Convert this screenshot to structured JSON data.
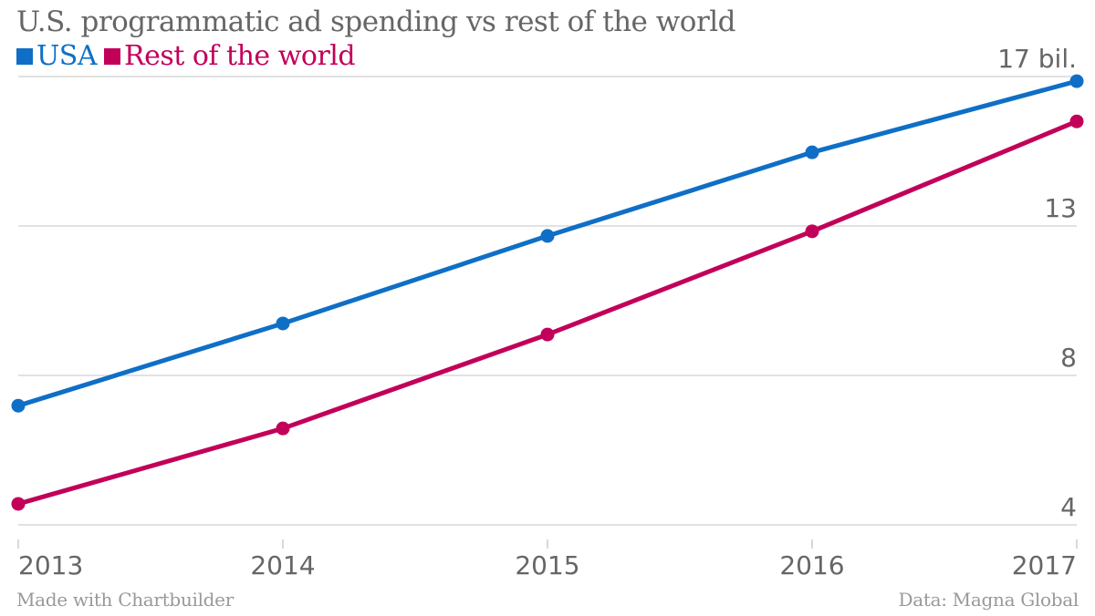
{
  "header": {
    "title": "U.S. programmatic ad spending vs rest of the world"
  },
  "legend": [
    {
      "label": "USA",
      "color": "#0F6FC6"
    },
    {
      "label": "Rest of the world",
      "color": "#C2005A"
    }
  ],
  "footer": {
    "credit": "Made with Chartbuilder",
    "source": "Data: Magna Global"
  },
  "chart_data": {
    "type": "line",
    "title": "U.S. programmatic ad spending vs rest of the world",
    "xlabel": "",
    "ylabel": "",
    "x": [
      "2013",
      "2014",
      "2015",
      "2016",
      "2017"
    ],
    "series": [
      {
        "name": "USA",
        "color": "#0F6FC6",
        "values": [
          7.55,
          9.86,
          12.32,
          14.67,
          16.67
        ]
      },
      {
        "name": "Rest of the world",
        "color": "#C2005A",
        "values": [
          4.79,
          6.91,
          9.55,
          12.45,
          15.54
        ]
      }
    ],
    "ylim": [
      4.2,
      16.8
    ],
    "yticks": [
      {
        "value": 4.2,
        "label": "4"
      },
      {
        "value": 8.4,
        "label": "8"
      },
      {
        "value": 12.6,
        "label": "13"
      },
      {
        "value": 16.8,
        "label": "17 bil."
      }
    ],
    "grid": true,
    "legend_position": "top-left",
    "y_axis_position": "right"
  }
}
